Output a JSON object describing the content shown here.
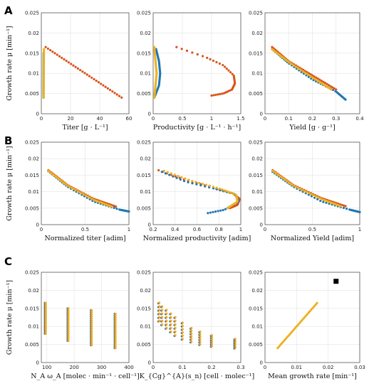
{
  "colors": {
    "blue": "#1f77b4",
    "orange": "#d95319",
    "yellow": "#edb120",
    "black": "#000000"
  },
  "chart_data": [
    {
      "type": "scatter",
      "panel": "A",
      "xlabel": "Titer  [g · L⁻¹]",
      "ylabel": "Growth rate μ  [min⁻¹]",
      "xlim": [
        0,
        60
      ],
      "ylim": [
        0,
        0.025
      ],
      "xticks": [
        0,
        20,
        40,
        60
      ],
      "yticks": [
        0,
        0.005,
        0.01,
        0.015,
        0.02,
        0.025
      ],
      "series": [
        {
          "color": "orange",
          "x": [
            3,
            55
          ],
          "y": [
            0.0165,
            0.004
          ],
          "mode": "line-points"
        },
        {
          "color": "blue",
          "x": [
            1.5,
            1.6
          ],
          "y": [
            0.004,
            0.015
          ],
          "mode": "line-points"
        },
        {
          "color": "yellow",
          "x": [
            1.6,
            1.8
          ],
          "y": [
            0.004,
            0.016
          ],
          "mode": "line-points"
        }
      ]
    },
    {
      "type": "scatter",
      "panel": "A2",
      "xlabel": "Productivity  [g · L⁻¹ · h⁻¹]",
      "ylabel": "",
      "xlim": [
        0,
        1.5
      ],
      "ylim": [
        0,
        0.025
      ],
      "xticks": [
        0,
        0.5,
        1,
        1.5
      ],
      "yticks": [
        0,
        0.005,
        0.01,
        0.015,
        0.02,
        0.025
      ],
      "series": [
        {
          "color": "orange",
          "mode": "curve",
          "x": [
            0.4,
            0.9,
            1.2,
            1.38,
            1.4,
            1.35,
            1.2,
            1.0
          ],
          "y": [
            0.0165,
            0.014,
            0.012,
            0.0095,
            0.0075,
            0.006,
            0.005,
            0.0045
          ]
        },
        {
          "color": "blue",
          "mode": "curve",
          "x": [
            0.02,
            0.1,
            0.12,
            0.1,
            0.05
          ],
          "y": [
            0.004,
            0.007,
            0.01,
            0.013,
            0.016
          ]
        },
        {
          "color": "yellow",
          "mode": "curve",
          "x": [
            0.02,
            0.04,
            0.06,
            0.04,
            0.02
          ],
          "y": [
            0.004,
            0.007,
            0.01,
            0.013,
            0.0165
          ]
        }
      ]
    },
    {
      "type": "scatter",
      "panel": "A3",
      "xlabel": "Yield  [g · g⁻¹]",
      "ylabel": "",
      "xlim": [
        0,
        0.4
      ],
      "ylim": [
        0,
        0.025
      ],
      "xticks": [
        0,
        0.1,
        0.2,
        0.3,
        0.4
      ],
      "yticks": [
        0,
        0.005,
        0.01,
        0.015,
        0.02,
        0.025
      ],
      "series": [
        {
          "color": "blue",
          "mode": "curve",
          "x": [
            0.03,
            0.1,
            0.2,
            0.3,
            0.34
          ],
          "y": [
            0.016,
            0.0125,
            0.0085,
            0.0055,
            0.0035
          ]
        },
        {
          "color": "orange",
          "mode": "curve",
          "x": [
            0.03,
            0.1,
            0.2,
            0.3
          ],
          "y": [
            0.0165,
            0.013,
            0.0095,
            0.006
          ]
        },
        {
          "color": "yellow",
          "mode": "curve",
          "x": [
            0.03,
            0.1,
            0.2,
            0.28
          ],
          "y": [
            0.016,
            0.0128,
            0.009,
            0.006
          ]
        }
      ]
    },
    {
      "type": "scatter",
      "panel": "B",
      "xlabel": "Normalized titer  [adim]",
      "ylabel": "Growth rate μ  [min⁻¹]",
      "xlim": [
        0,
        1
      ],
      "ylim": [
        0,
        0.025
      ],
      "xticks": [
        0,
        0.5,
        1
      ],
      "yticks": [
        0,
        0.005,
        0.01,
        0.015,
        0.02,
        0.025
      ],
      "series": [
        {
          "color": "blue",
          "mode": "curve",
          "x": [
            0.08,
            0.3,
            0.6,
            0.9,
            1.0
          ],
          "y": [
            0.0162,
            0.0115,
            0.007,
            0.0045,
            0.004
          ]
        },
        {
          "color": "orange",
          "mode": "curve",
          "x": [
            0.08,
            0.3,
            0.6,
            0.85
          ],
          "y": [
            0.0165,
            0.012,
            0.0078,
            0.0055
          ]
        },
        {
          "color": "yellow",
          "mode": "curve",
          "x": [
            0.08,
            0.3,
            0.6,
            0.8
          ],
          "y": [
            0.0163,
            0.0118,
            0.0075,
            0.0055
          ]
        }
      ]
    },
    {
      "type": "scatter",
      "panel": "B2",
      "xlabel": "Normalized productivity  [adim]",
      "ylabel": "",
      "xlim": [
        0.2,
        1
      ],
      "ylim": [
        0,
        0.025
      ],
      "xticks": [
        0.2,
        0.4,
        0.6,
        0.8,
        1
      ],
      "yticks": [
        0,
        0.005,
        0.01,
        0.015,
        0.02,
        0.025
      ],
      "series": [
        {
          "color": "orange",
          "mode": "curve",
          "x": [
            0.25,
            0.5,
            0.75,
            0.93,
            0.99,
            0.97,
            0.9
          ],
          "y": [
            0.0165,
            0.0135,
            0.0112,
            0.0095,
            0.0078,
            0.006,
            0.005
          ]
        },
        {
          "color": "blue",
          "mode": "curve",
          "x": [
            0.28,
            0.5,
            0.75,
            0.95,
            0.98,
            0.85,
            0.7
          ],
          "y": [
            0.016,
            0.013,
            0.011,
            0.0092,
            0.007,
            0.0045,
            0.0035
          ]
        },
        {
          "color": "yellow",
          "mode": "curve",
          "x": [
            0.3,
            0.55,
            0.8,
            0.96,
            0.97,
            0.88
          ],
          "y": [
            0.0163,
            0.0133,
            0.011,
            0.009,
            0.007,
            0.005
          ]
        }
      ]
    },
    {
      "type": "scatter",
      "panel": "B3",
      "xlabel": "Normalized Yield  [adim]",
      "ylabel": "",
      "xlim": [
        0,
        1
      ],
      "ylim": [
        0,
        0.025
      ],
      "xticks": [
        0,
        0.5,
        1
      ],
      "yticks": [
        0,
        0.005,
        0.01,
        0.015,
        0.02,
        0.025
      ],
      "series": [
        {
          "color": "blue",
          "mode": "curve",
          "x": [
            0.08,
            0.3,
            0.6,
            0.9,
            1.0
          ],
          "y": [
            0.016,
            0.0115,
            0.007,
            0.0045,
            0.0038
          ]
        },
        {
          "color": "orange",
          "mode": "curve",
          "x": [
            0.08,
            0.3,
            0.6,
            0.85
          ],
          "y": [
            0.0165,
            0.012,
            0.008,
            0.0056
          ]
        },
        {
          "color": "yellow",
          "mode": "curve",
          "x": [
            0.08,
            0.3,
            0.6,
            0.8
          ],
          "y": [
            0.0163,
            0.0118,
            0.0077,
            0.0056
          ]
        }
      ]
    },
    {
      "type": "scatter",
      "panel": "C",
      "xlabel": "N_A ω_A  [molec · min⁻¹ · cell⁻¹]",
      "ylabel": "Growth rate μ  [min⁻¹]",
      "xlim": [
        80,
        400
      ],
      "ylim": [
        0,
        0.025
      ],
      "xticks": [
        100,
        200,
        300,
        400
      ],
      "yticks": [
        0,
        0.005,
        0.01,
        0.015,
        0.02,
        0.025
      ],
      "series": [
        {
          "color": "yellow",
          "mode": "columns",
          "x": [
            95,
            178,
            263,
            350
          ],
          "ymin": [
            0.008,
            0.006,
            0.0048,
            0.004
          ],
          "ymax": [
            0.0165,
            0.015,
            0.0145,
            0.0135
          ]
        }
      ]
    },
    {
      "type": "scatter",
      "panel": "C2",
      "xlabel": "K_{Cg}^{A}(s_n)  [cell · molec⁻¹]",
      "ylabel": "",
      "xlim": [
        0,
        0.3
      ],
      "ylim": [
        0,
        0.025
      ],
      "xticks": [
        0,
        0.1,
        0.2,
        0.3
      ],
      "yticks": [
        0,
        0.005,
        0.01,
        0.015,
        0.02,
        0.025
      ],
      "series": [
        {
          "color": "yellow",
          "mode": "bands",
          "x": [
            0.02,
            0.03,
            0.045,
            0.06,
            0.075,
            0.1,
            0.13,
            0.16,
            0.2,
            0.28
          ],
          "ytop": [
            0.0165,
            0.0155,
            0.0145,
            0.0135,
            0.0125,
            0.011,
            0.0095,
            0.0085,
            0.0075,
            0.0065
          ],
          "ybot": [
            0.0115,
            0.0105,
            0.0095,
            0.0085,
            0.0075,
            0.0065,
            0.0057,
            0.005,
            0.0045,
            0.004
          ]
        }
      ]
    },
    {
      "type": "scatter",
      "panel": "C3",
      "xlabel": "Mean growth rate  [min⁻¹]",
      "ylabel": "",
      "xlim": [
        0,
        0.03
      ],
      "ylim": [
        0,
        0.025
      ],
      "xticks": [
        0,
        0.01,
        0.02,
        0.03
      ],
      "yticks": [
        0,
        0.005,
        0.01,
        0.015,
        0.02,
        0.025
      ],
      "series": [
        {
          "color": "yellow",
          "mode": "line-points",
          "x": [
            0.004,
            0.0165
          ],
          "y": [
            0.004,
            0.0165
          ]
        }
      ],
      "marker": {
        "x": 0.0225,
        "y": 0.0225,
        "color": "black"
      }
    }
  ],
  "panel_letters": [
    "A",
    "B",
    "C"
  ]
}
